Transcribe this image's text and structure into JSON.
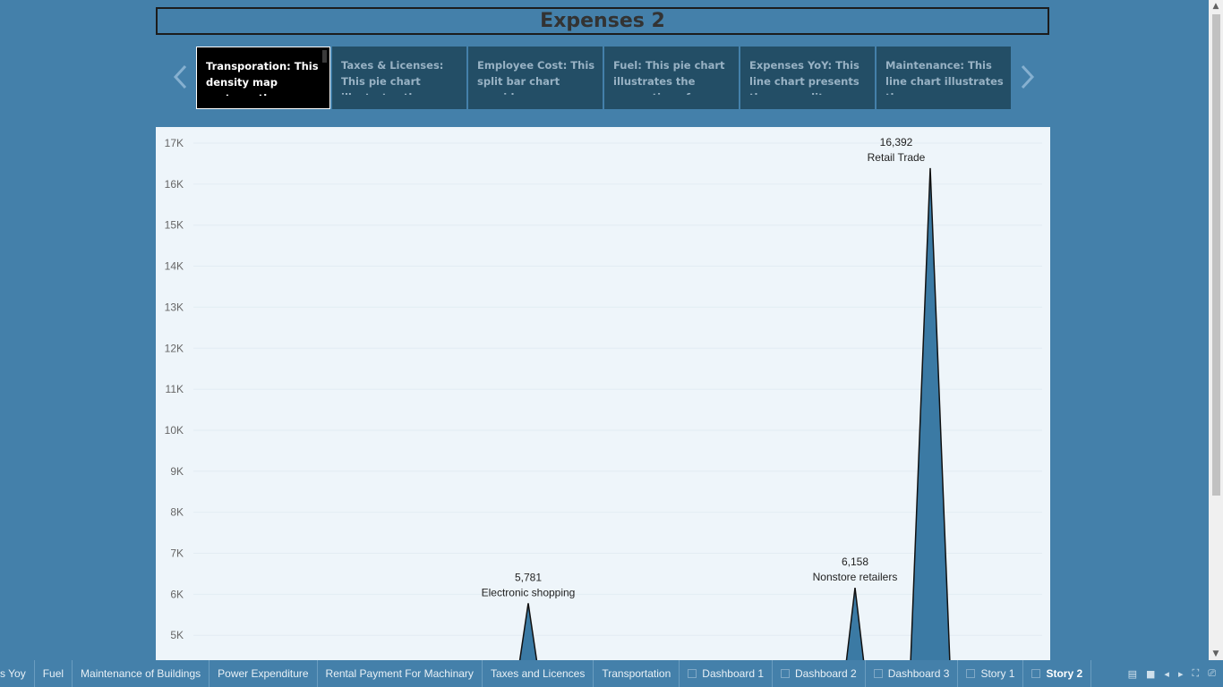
{
  "title": "Expenses 2",
  "story_points": [
    {
      "text": "Transporation: This density map portrays the expenditure on",
      "active": true
    },
    {
      "text": "Taxes & Licenses: This pie chart illustrates the proportion of",
      "active": false
    },
    {
      "text": "Employee Cost: This split bar chart provides a comparison",
      "active": false
    },
    {
      "text": "Fuel: This pie chart illustrates the proportion of",
      "active": false
    },
    {
      "text": "Expenses YoY: This line chart presents the expenditure trends of",
      "active": false
    },
    {
      "text": "Maintenance: This line chart illustrates the expenses incurred by",
      "active": false
    }
  ],
  "chart_data": {
    "type": "area",
    "y_ticks": [
      "17K",
      "16K",
      "15K",
      "14K",
      "13K",
      "12K",
      "11K",
      "10K",
      "9K",
      "8K",
      "7K",
      "6K",
      "5K"
    ],
    "ylim_visible": [
      4300,
      17300
    ],
    "series_color": "#3b7aa4",
    "peaks": [
      {
        "label": "Electronic shopping",
        "value_text": "5,781",
        "value": 5781
      },
      {
        "label": "Nonstore retailers",
        "value_text": "6,158",
        "value": 6158
      },
      {
        "label": "Retail Trade",
        "value_text": "16,392",
        "value": 16392
      }
    ]
  },
  "tabs": [
    {
      "label": "s Yoy",
      "type": "sheet"
    },
    {
      "label": "Fuel",
      "type": "sheet"
    },
    {
      "label": "Maintenance of Buildings",
      "type": "sheet"
    },
    {
      "label": "Power Expenditure",
      "type": "sheet"
    },
    {
      "label": "Rental Payment For Machinary",
      "type": "sheet"
    },
    {
      "label": "Taxes and Licences",
      "type": "sheet"
    },
    {
      "label": "Transportation",
      "type": "sheet"
    },
    {
      "label": "Dashboard 1",
      "type": "dashboard"
    },
    {
      "label": "Dashboard 2",
      "type": "dashboard"
    },
    {
      "label": "Dashboard 3",
      "type": "dashboard"
    },
    {
      "label": "Story 1",
      "type": "story"
    },
    {
      "label": "Story 2",
      "type": "story",
      "active": true
    }
  ],
  "icons": {
    "prev": "chevron-left-icon",
    "next": "chevron-right-icon"
  }
}
